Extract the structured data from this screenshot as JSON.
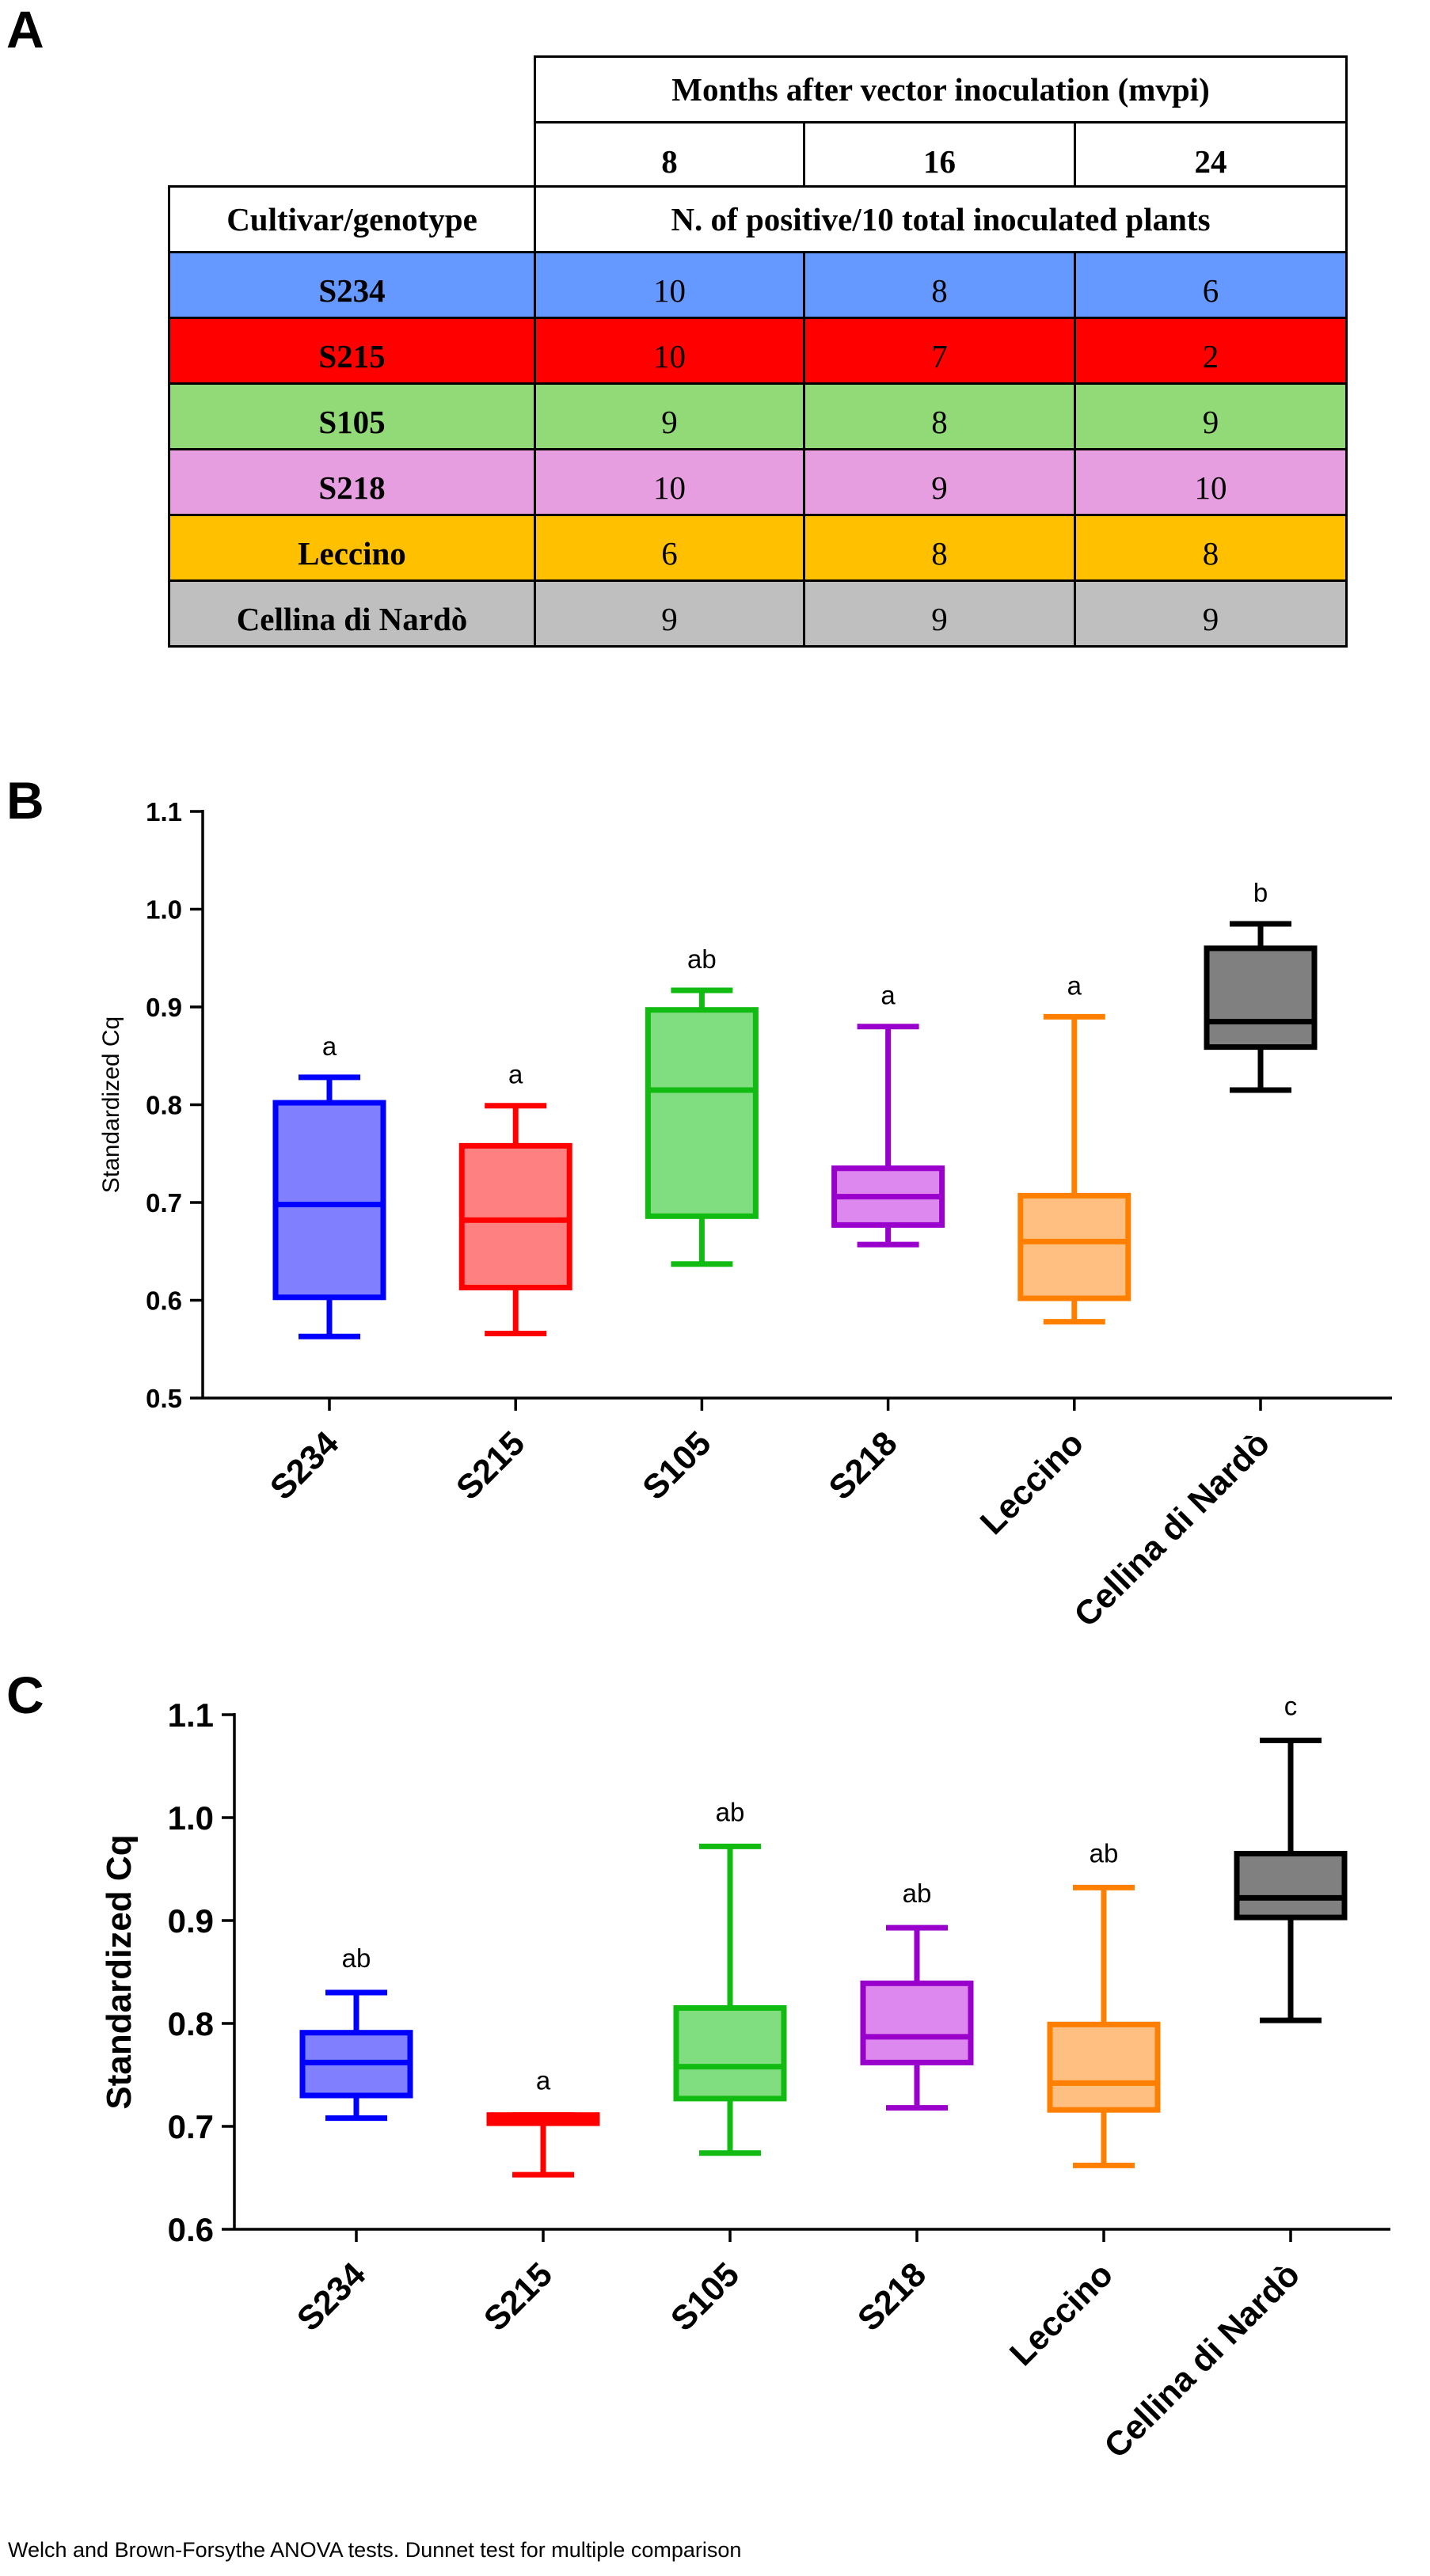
{
  "panels": {
    "a": "A",
    "b": "B",
    "c": "C"
  },
  "table": {
    "header_top": "Months after vector inoculation (mvpi)",
    "months": [
      "8",
      "16",
      "24"
    ],
    "col_label": "Cultivar/genotype",
    "sub_header": "N. of positive/10 total inoculated plants",
    "rows": [
      {
        "name": "S234",
        "values": [
          "10",
          "8",
          "6"
        ],
        "color": "#6699ff"
      },
      {
        "name": "S215",
        "values": [
          "10",
          "7",
          "2"
        ],
        "color": "#ff0000"
      },
      {
        "name": "S105",
        "values": [
          "9",
          "8",
          "9"
        ],
        "color": "#92d977"
      },
      {
        "name": "S218",
        "values": [
          "10",
          "9",
          "10"
        ],
        "color": "#e69ee0"
      },
      {
        "name": "Leccino",
        "values": [
          "6",
          "8",
          "8"
        ],
        "color": "#ffc000"
      },
      {
        "name": "Cellina di Nardò",
        "values": [
          "9",
          "9",
          "9"
        ],
        "color": "#bfbfbf"
      }
    ]
  },
  "chart_data": [
    {
      "type": "box",
      "title": "",
      "ylabel": "Standardized Cq",
      "ylim": [
        0.5,
        1.1
      ],
      "yticks": [
        "0.5",
        "0.6",
        "0.7",
        "0.8",
        "0.9",
        "1.0",
        "1.1"
      ],
      "categories": [
        "S234",
        "S215",
        "S105",
        "S218",
        "Leccino",
        "Cellina di Nardò"
      ],
      "colors": [
        "#0000ff",
        "#ff0000",
        "#11bb11",
        "#9900cc",
        "#ff8000",
        "#000000"
      ],
      "fills": [
        "#8080ff",
        "#ff8080",
        "#80dd80",
        "#dd88ee",
        "#ffbf80",
        "#808080"
      ],
      "boxes": [
        {
          "min": 0.563,
          "q1": 0.603,
          "median": 0.698,
          "q3": 0.802,
          "max": 0.828,
          "label": "a"
        },
        {
          "min": 0.566,
          "q1": 0.613,
          "median": 0.682,
          "q3": 0.758,
          "max": 0.799,
          "label": "a"
        },
        {
          "min": 0.637,
          "q1": 0.686,
          "median": 0.815,
          "q3": 0.897,
          "max": 0.917,
          "label": "ab"
        },
        {
          "min": 0.657,
          "q1": 0.677,
          "median": 0.706,
          "q3": 0.735,
          "max": 0.88,
          "label": "a"
        },
        {
          "min": 0.578,
          "q1": 0.602,
          "median": 0.66,
          "q3": 0.707,
          "max": 0.89,
          "label": "a"
        },
        {
          "min": 0.815,
          "q1": 0.859,
          "median": 0.885,
          "q3": 0.96,
          "max": 0.985,
          "label": "b"
        }
      ]
    },
    {
      "type": "box",
      "title": "",
      "ylabel": "Standardized Cq",
      "ylim": [
        0.6,
        1.1
      ],
      "yticks": [
        "0.6",
        "0.7",
        "0.8",
        "0.9",
        "1.0",
        "1.1"
      ],
      "categories": [
        "S234",
        "S215",
        "S105",
        "S218",
        "Leccino",
        "Cellina di Nardò"
      ],
      "colors": [
        "#0000ff",
        "#ff0000",
        "#11bb11",
        "#9900cc",
        "#ff8000",
        "#000000"
      ],
      "fills": [
        "#8080ff",
        "#ff8080",
        "#80dd80",
        "#dd88ee",
        "#ffbf80",
        "#808080"
      ],
      "boxes": [
        {
          "min": 0.708,
          "q1": 0.73,
          "median": 0.762,
          "q3": 0.791,
          "max": 0.83,
          "label": "ab"
        },
        {
          "min": 0.653,
          "q1": 0.703,
          "median": 0.707,
          "q3": 0.711,
          "max": 0.711,
          "label": "a"
        },
        {
          "min": 0.674,
          "q1": 0.727,
          "median": 0.758,
          "q3": 0.815,
          "max": 0.972,
          "label": "ab"
        },
        {
          "min": 0.718,
          "q1": 0.762,
          "median": 0.787,
          "q3": 0.839,
          "max": 0.893,
          "label": "ab"
        },
        {
          "min": 0.662,
          "q1": 0.716,
          "median": 0.742,
          "q3": 0.799,
          "max": 0.932,
          "label": "ab"
        },
        {
          "min": 0.803,
          "q1": 0.903,
          "median": 0.922,
          "q3": 0.965,
          "max": 1.075,
          "label": "c"
        }
      ]
    }
  ],
  "footnote": "Welch and Brown-Forsythe ANOVA tests. Dunnet test for multiple comparison"
}
